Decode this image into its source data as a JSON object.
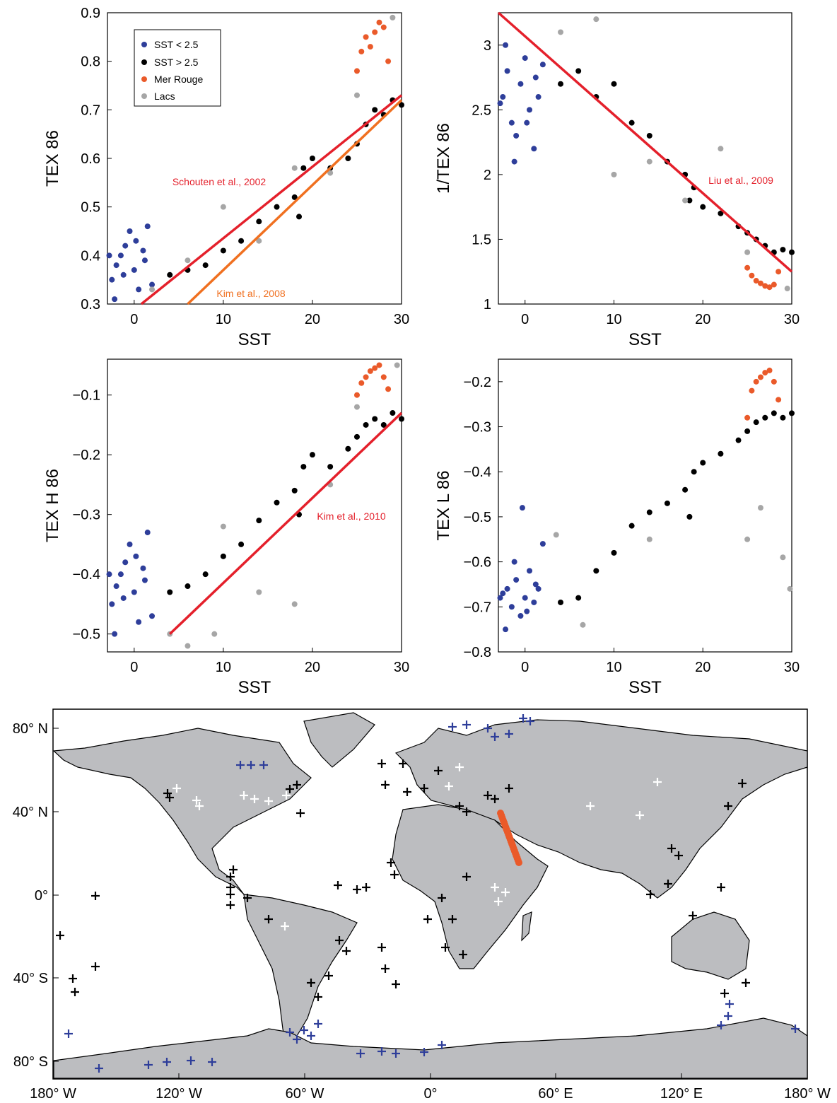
{
  "colors": {
    "sst_low": "#2e3e9a",
    "sst_high": "#000000",
    "red_sea": "#ea5a2a",
    "lakes": "#a6a6a6",
    "fit_red": "#e4202b",
    "fit_orange": "#f07020",
    "land": "#bcbdc0"
  },
  "legend": {
    "sst_low": "SST < 2.5",
    "sst_high": "SST > 2.5",
    "red_sea": "Mer Rouge",
    "lakes": "Lacs"
  },
  "chart_data": [
    {
      "type": "scatter",
      "id": "tex86",
      "xlabel": "SST",
      "ylabel": "TEX 86",
      "xlim": [
        -3,
        30
      ],
      "ylim": [
        0.3,
        0.9
      ],
      "xticks": [
        0,
        10,
        20,
        30
      ],
      "yticks": [
        0.3,
        0.4,
        0.5,
        0.6,
        0.7,
        0.8,
        0.9
      ],
      "series": [
        {
          "name": "SST < 2.5",
          "key": "sst_low",
          "x": [
            -2.5,
            -2,
            -1.5,
            -1,
            -0.5,
            0,
            0.5,
            1,
            1.5,
            -2.2,
            -1.2,
            0.2,
            1.2,
            -2.8,
            2
          ],
          "y": [
            0.35,
            0.38,
            0.4,
            0.42,
            0.45,
            0.37,
            0.33,
            0.41,
            0.46,
            0.31,
            0.36,
            0.43,
            0.39,
            0.4,
            0.34
          ]
        },
        {
          "name": "SST > 2.5",
          "key": "sst_high",
          "x": [
            4,
            6,
            8,
            10,
            12,
            14,
            16,
            18,
            18.5,
            19,
            20,
            22,
            24,
            25,
            26,
            27,
            28,
            29,
            30
          ],
          "y": [
            0.36,
            0.37,
            0.38,
            0.41,
            0.43,
            0.47,
            0.5,
            0.52,
            0.48,
            0.58,
            0.6,
            0.58,
            0.6,
            0.63,
            0.67,
            0.7,
            0.69,
            0.72,
            0.71
          ]
        },
        {
          "name": "Mer Rouge",
          "key": "red_sea",
          "x": [
            25,
            25.5,
            26,
            26.5,
            27,
            27.5,
            28,
            28.5
          ],
          "y": [
            0.78,
            0.82,
            0.85,
            0.83,
            0.86,
            0.88,
            0.87,
            0.8
          ]
        },
        {
          "name": "Lacs",
          "key": "lakes",
          "x": [
            2,
            6,
            10,
            14,
            18,
            22,
            25,
            29
          ],
          "y": [
            0.33,
            0.39,
            0.5,
            0.43,
            0.58,
            0.57,
            0.73,
            0.89
          ]
        }
      ],
      "fits": [
        {
          "label": "Schouten et al., 2002",
          "key": "fit_red",
          "x": [
            0.8,
            30
          ],
          "y": [
            0.3,
            0.73
          ]
        },
        {
          "label": "Kim et al., 2008",
          "key": "fit_orange",
          "x": [
            6,
            30
          ],
          "y": [
            0.3,
            0.72
          ]
        }
      ]
    },
    {
      "type": "scatter",
      "id": "inv_tex86",
      "xlabel": "SST",
      "ylabel": "1/TEX 86",
      "xlim": [
        -3,
        30
      ],
      "ylim": [
        1,
        3.25
      ],
      "xticks": [
        0,
        10,
        20,
        30
      ],
      "yticks": [
        1,
        1.5,
        2,
        2.5,
        3
      ],
      "series": [
        {
          "name": "SST < 2.5",
          "key": "sst_low",
          "x": [
            -2.5,
            -2,
            -1.5,
            -1,
            -0.5,
            0,
            0.5,
            1,
            1.5,
            -2.2,
            -1.2,
            0.2,
            1.2,
            -2.8,
            2
          ],
          "y": [
            2.6,
            2.8,
            2.4,
            2.3,
            2.7,
            2.9,
            2.5,
            2.2,
            2.6,
            3.0,
            2.1,
            2.4,
            2.75,
            2.55,
            2.85
          ]
        },
        {
          "name": "SST > 2.5",
          "key": "sst_high",
          "x": [
            4,
            6,
            8,
            10,
            12,
            14,
            16,
            18,
            18.5,
            19,
            20,
            22,
            24,
            25,
            26,
            27,
            28,
            29,
            30
          ],
          "y": [
            2.7,
            2.8,
            2.6,
            2.7,
            2.4,
            2.3,
            2.1,
            2.0,
            1.8,
            1.9,
            1.75,
            1.7,
            1.6,
            1.55,
            1.5,
            1.45,
            1.4,
            1.42,
            1.4
          ]
        },
        {
          "name": "Mer Rouge",
          "key": "red_sea",
          "x": [
            25,
            25.5,
            26,
            26.5,
            27,
            27.5,
            28,
            28.5
          ],
          "y": [
            1.28,
            1.22,
            1.18,
            1.16,
            1.14,
            1.13,
            1.15,
            1.25
          ]
        },
        {
          "name": "Lacs",
          "key": "lakes",
          "x": [
            4,
            8,
            10,
            14,
            18,
            22,
            25,
            29.5
          ],
          "y": [
            3.1,
            3.2,
            2.0,
            2.1,
            1.8,
            2.2,
            1.4,
            1.12
          ]
        }
      ],
      "fits": [
        {
          "label": "Liu et al., 2009",
          "key": "fit_red",
          "x": [
            -3,
            30
          ],
          "y": [
            3.25,
            1.25
          ]
        }
      ]
    },
    {
      "type": "scatter",
      "id": "tex86h",
      "xlabel": "SST",
      "ylabel": "TEX H 86",
      "xlim": [
        -3,
        30
      ],
      "ylim": [
        -0.53,
        -0.04
      ],
      "xticks": [
        0,
        10,
        20,
        30
      ],
      "yticks": [
        -0.5,
        -0.4,
        -0.3,
        -0.2,
        -0.1
      ],
      "series": [
        {
          "name": "SST < 2.5",
          "key": "sst_low",
          "x": [
            -2.5,
            -2,
            -1.5,
            -1,
            -0.5,
            0,
            0.5,
            1,
            1.5,
            -2.2,
            -1.2,
            0.2,
            1.2,
            -2.8,
            2
          ],
          "y": [
            -0.45,
            -0.42,
            -0.4,
            -0.38,
            -0.35,
            -0.43,
            -0.48,
            -0.39,
            -0.33,
            -0.5,
            -0.44,
            -0.37,
            -0.41,
            -0.4,
            -0.47
          ]
        },
        {
          "name": "SST > 2.5",
          "key": "sst_high",
          "x": [
            4,
            6,
            8,
            10,
            12,
            14,
            16,
            18,
            18.5,
            19,
            20,
            22,
            24,
            25,
            26,
            27,
            28,
            29,
            30
          ],
          "y": [
            -0.43,
            -0.42,
            -0.4,
            -0.37,
            -0.35,
            -0.31,
            -0.28,
            -0.26,
            -0.3,
            -0.22,
            -0.2,
            -0.22,
            -0.19,
            -0.17,
            -0.15,
            -0.14,
            -0.15,
            -0.13,
            -0.14
          ]
        },
        {
          "name": "Mer Rouge",
          "key": "red_sea",
          "x": [
            25,
            25.5,
            26,
            26.5,
            27,
            27.5,
            28,
            28.5
          ],
          "y": [
            -0.1,
            -0.08,
            -0.07,
            -0.06,
            -0.055,
            -0.05,
            -0.07,
            -0.09
          ]
        },
        {
          "name": "Lacs",
          "key": "lakes",
          "x": [
            4,
            6,
            9,
            10,
            14,
            18,
            22,
            25,
            29.5
          ],
          "y": [
            -0.5,
            -0.52,
            -0.5,
            -0.32,
            -0.43,
            -0.45,
            -0.25,
            -0.12,
            -0.05
          ]
        }
      ],
      "fits": [
        {
          "label": "Kim et al., 2010",
          "key": "fit_red",
          "x": [
            4,
            30
          ],
          "y": [
            -0.5,
            -0.13
          ]
        }
      ]
    },
    {
      "type": "scatter",
      "id": "tex86l",
      "xlabel": "SST",
      "ylabel": "TEX L 86",
      "xlim": [
        -3,
        30
      ],
      "ylim": [
        -0.8,
        -0.15
      ],
      "xticks": [
        0,
        10,
        20,
        30
      ],
      "yticks": [
        -0.8,
        -0.7,
        -0.6,
        -0.5,
        -0.4,
        -0.3,
        -0.2
      ],
      "series": [
        {
          "name": "SST < 2.5",
          "key": "sst_low",
          "x": [
            -2.5,
            -2,
            -1.5,
            -1,
            -0.5,
            0,
            0.5,
            1,
            1.5,
            -2.2,
            -1.2,
            0.2,
            1.2,
            -2.8,
            2,
            -0.3
          ],
          "y": [
            -0.67,
            -0.66,
            -0.7,
            -0.64,
            -0.72,
            -0.68,
            -0.62,
            -0.69,
            -0.66,
            -0.75,
            -0.6,
            -0.71,
            -0.65,
            -0.68,
            -0.56,
            -0.48
          ]
        },
        {
          "name": "SST > 2.5",
          "key": "sst_high",
          "x": [
            4,
            6,
            8,
            10,
            12,
            14,
            16,
            18,
            18.5,
            19,
            20,
            22,
            24,
            25,
            26,
            27,
            28,
            29,
            30
          ],
          "y": [
            -0.69,
            -0.68,
            -0.62,
            -0.58,
            -0.52,
            -0.49,
            -0.47,
            -0.44,
            -0.5,
            -0.4,
            -0.38,
            -0.36,
            -0.33,
            -0.31,
            -0.29,
            -0.28,
            -0.27,
            -0.28,
            -0.27
          ]
        },
        {
          "name": "Mer Rouge",
          "key": "red_sea",
          "x": [
            25,
            25.5,
            26,
            26.5,
            27,
            27.5,
            28,
            28.5
          ],
          "y": [
            -0.28,
            -0.22,
            -0.2,
            -0.19,
            -0.18,
            -0.175,
            -0.2,
            -0.24
          ]
        },
        {
          "name": "Lacs",
          "key": "lakes",
          "x": [
            3.5,
            6.5,
            14,
            25,
            26.5,
            29,
            29.8
          ],
          "y": [
            -0.54,
            -0.74,
            -0.55,
            -0.55,
            -0.48,
            -0.59,
            -0.66
          ]
        }
      ],
      "fits": []
    },
    {
      "type": "map",
      "id": "world",
      "xticks": [
        "180° W",
        "120° W",
        "60° W",
        "0°",
        "60° E",
        "120° E",
        "180° W"
      ],
      "yticks": [
        "80° N",
        "40° N",
        "0°",
        "40° S",
        "80° S"
      ]
    }
  ]
}
